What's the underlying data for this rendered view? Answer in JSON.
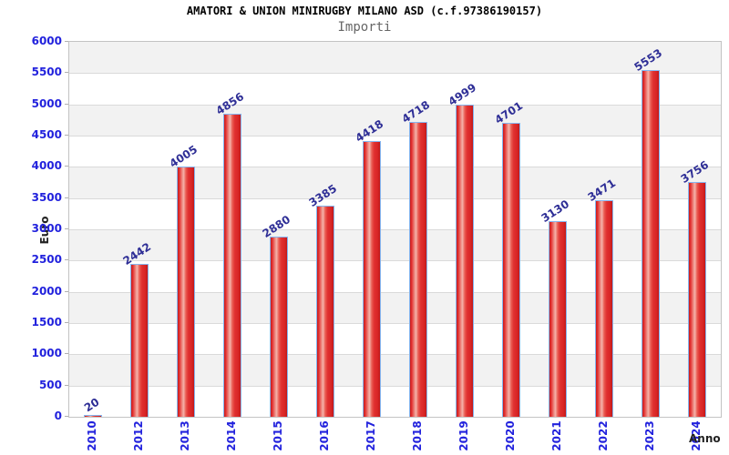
{
  "chart_data": {
    "type": "bar",
    "title": "AMATORI & UNION MINIRUGBY MILANO ASD (c.f.97386190157)",
    "subtitle": "Importi",
    "xlabel": "Anno",
    "ylabel": "Euro",
    "categories": [
      "2010",
      "2012",
      "2013",
      "2014",
      "2015",
      "2016",
      "2017",
      "2018",
      "2019",
      "2020",
      "2021",
      "2022",
      "2023",
      "2024"
    ],
    "values": [
      20,
      2442,
      4005,
      4856,
      2880,
      3385,
      4418,
      4718,
      4999,
      4701,
      3130,
      3471,
      5553,
      3756
    ],
    "ylim": [
      0,
      6000
    ],
    "ytick_step": 500,
    "grid": "horizontal-bands-every-500",
    "legend": "none",
    "colors": {
      "bar_fill": "#e03030",
      "bar_highlight": "#f5b3ab",
      "bar_border": "#85b5ef",
      "tick_label_blue": "#2222dd",
      "value_label_navy": "#2e2e96",
      "band_gray": "#f2f2f2",
      "band_white": "#ffffff",
      "gridline": "#dadada",
      "plot_border": "#c3c3c3",
      "axis_title_color": "#222222",
      "subtitle_color": "#666666"
    }
  }
}
